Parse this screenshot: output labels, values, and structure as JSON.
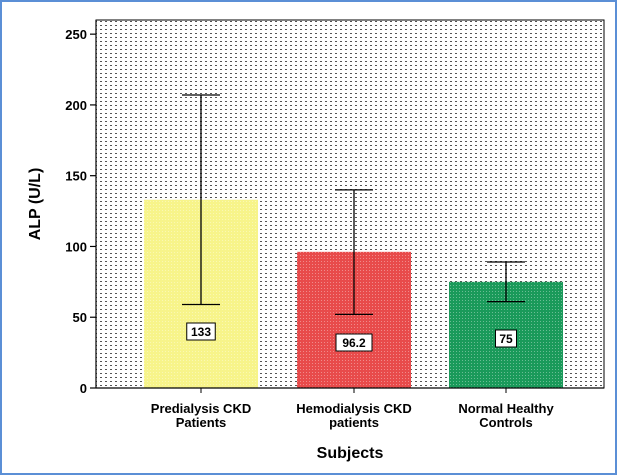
{
  "chart_data": {
    "type": "bar",
    "title": "",
    "xlabel": "Subjects",
    "ylabel": "ALP (U/L)",
    "ylim": [
      0,
      260
    ],
    "yticks": [
      0,
      50,
      100,
      150,
      200,
      250
    ],
    "categories": [
      [
        "Predialysis CKD",
        "Patients"
      ],
      [
        "Hemodialysis CKD",
        "patients"
      ],
      [
        "Normal Healthy",
        "Controls"
      ]
    ],
    "values": [
      133,
      96.2,
      75
    ],
    "value_labels": [
      "133",
      "96.2",
      "75"
    ],
    "error_bars": [
      {
        "low": 59,
        "high": 207
      },
      {
        "low": 52,
        "high": 140
      },
      {
        "low": 61,
        "high": 89
      }
    ],
    "colors": [
      "#f7f48a",
      "#e84b4b",
      "#1a9a5a"
    ],
    "grid": false
  }
}
